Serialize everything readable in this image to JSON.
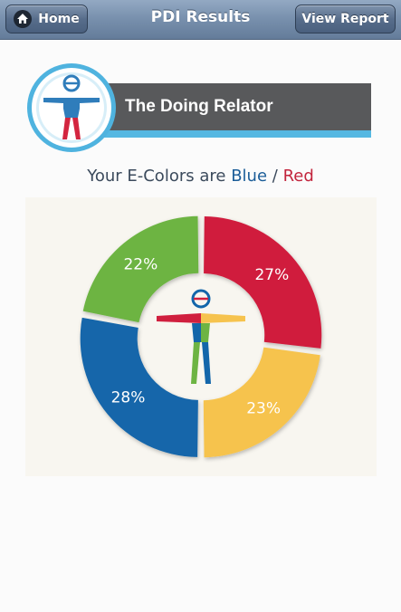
{
  "header": {
    "title": "PDI Results",
    "home_label": "Home",
    "report_label": "View Report"
  },
  "banner": {
    "heading": "The Doing Relator"
  },
  "ecolors": {
    "prefix": "Your E-Colors are",
    "primary": "Blue",
    "separator": "/",
    "secondary": "Red"
  },
  "colors": {
    "header": "#7991ae",
    "blue": "#1366aa",
    "red": "#d01f3e",
    "yellow": "#f6c34e",
    "green": "#6db443",
    "banner_gray": "#58595b",
    "banner_accent": "#55b8e2"
  },
  "icons": {
    "home": "home-icon",
    "logo": "e-colors-person-logo"
  },
  "chart_data": {
    "type": "pie",
    "categories": [
      "Red",
      "Yellow",
      "Blue",
      "Green"
    ],
    "values": [
      27,
      23,
      28,
      22
    ],
    "labels": [
      "27%",
      "23%",
      "28%",
      "22%"
    ],
    "colors": [
      "#d01f3e",
      "#f6c34e",
      "#1366aa",
      "#6db443"
    ]
  }
}
